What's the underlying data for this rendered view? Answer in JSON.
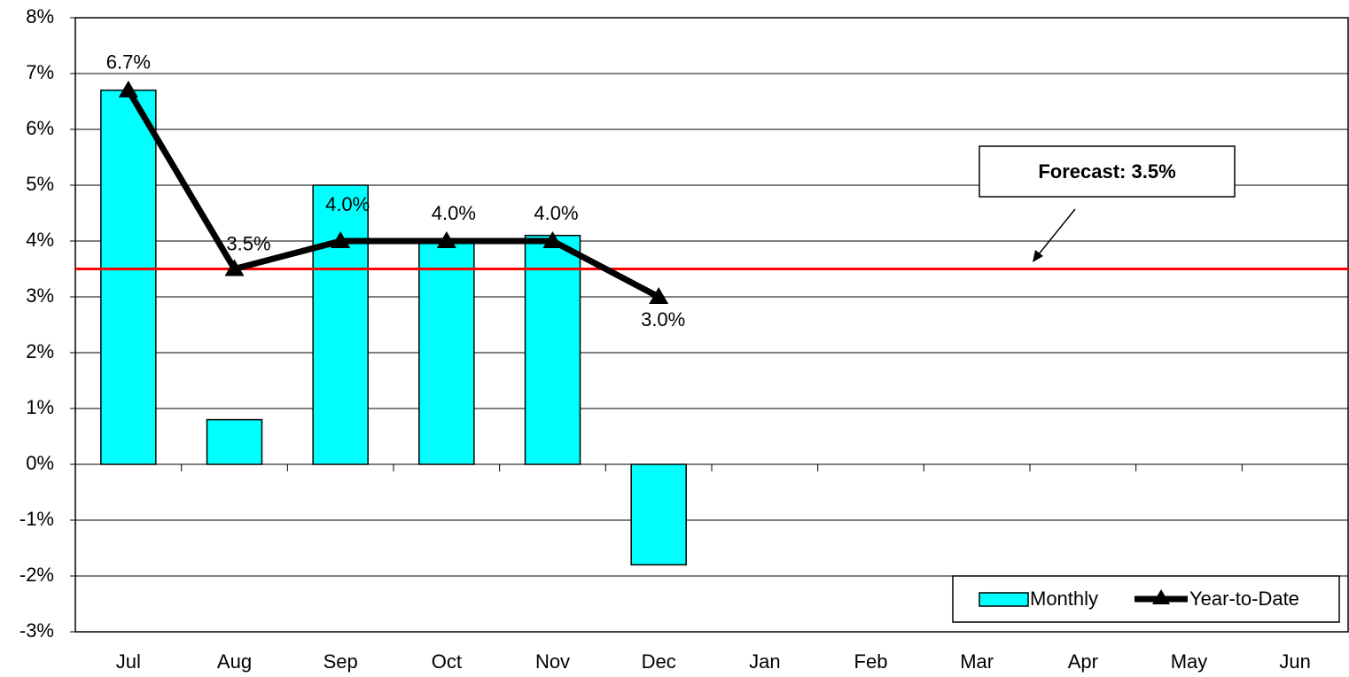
{
  "chart_data": {
    "type": "bar-line",
    "categories": [
      "Jul",
      "Aug",
      "Sep",
      "Oct",
      "Nov",
      "Dec",
      "Jan",
      "Feb",
      "Mar",
      "Apr",
      "May",
      "Jun"
    ],
    "series": [
      {
        "name": "Monthly",
        "type": "bar",
        "color": "#00ffff",
        "values": [
          6.7,
          0.8,
          5.0,
          4.0,
          4.1,
          -1.8,
          null,
          null,
          null,
          null,
          null,
          null
        ]
      },
      {
        "name": "Year-to-Date",
        "type": "line",
        "color": "#000000",
        "values": [
          6.7,
          3.5,
          4.0,
          4.0,
          4.0,
          3.0,
          null,
          null,
          null,
          null,
          null,
          null
        ],
        "value_labels": [
          "6.7%",
          "3.5%",
          "4.0%",
          "4.0%",
          "4.0%",
          "3.0%",
          null,
          null,
          null,
          null,
          null,
          null
        ]
      }
    ],
    "forecast": {
      "label": "Forecast: 3.5%",
      "value": 3.5,
      "color": "#ff0000"
    },
    "ylim": [
      -3,
      8
    ],
    "yticks": [
      {
        "value": -3,
        "label": "-3%"
      },
      {
        "value": -2,
        "label": "-2%"
      },
      {
        "value": -1,
        "label": "-1%"
      },
      {
        "value": 0,
        "label": "0%"
      },
      {
        "value": 1,
        "label": "1%"
      },
      {
        "value": 2,
        "label": "2%"
      },
      {
        "value": 3,
        "label": "3%"
      },
      {
        "value": 4,
        "label": "4%"
      },
      {
        "value": 5,
        "label": "5%"
      },
      {
        "value": 6,
        "label": "6%"
      },
      {
        "value": 7,
        "label": "7%"
      },
      {
        "value": 8,
        "label": "8%"
      }
    ],
    "grid": true,
    "legend": "lower right"
  }
}
